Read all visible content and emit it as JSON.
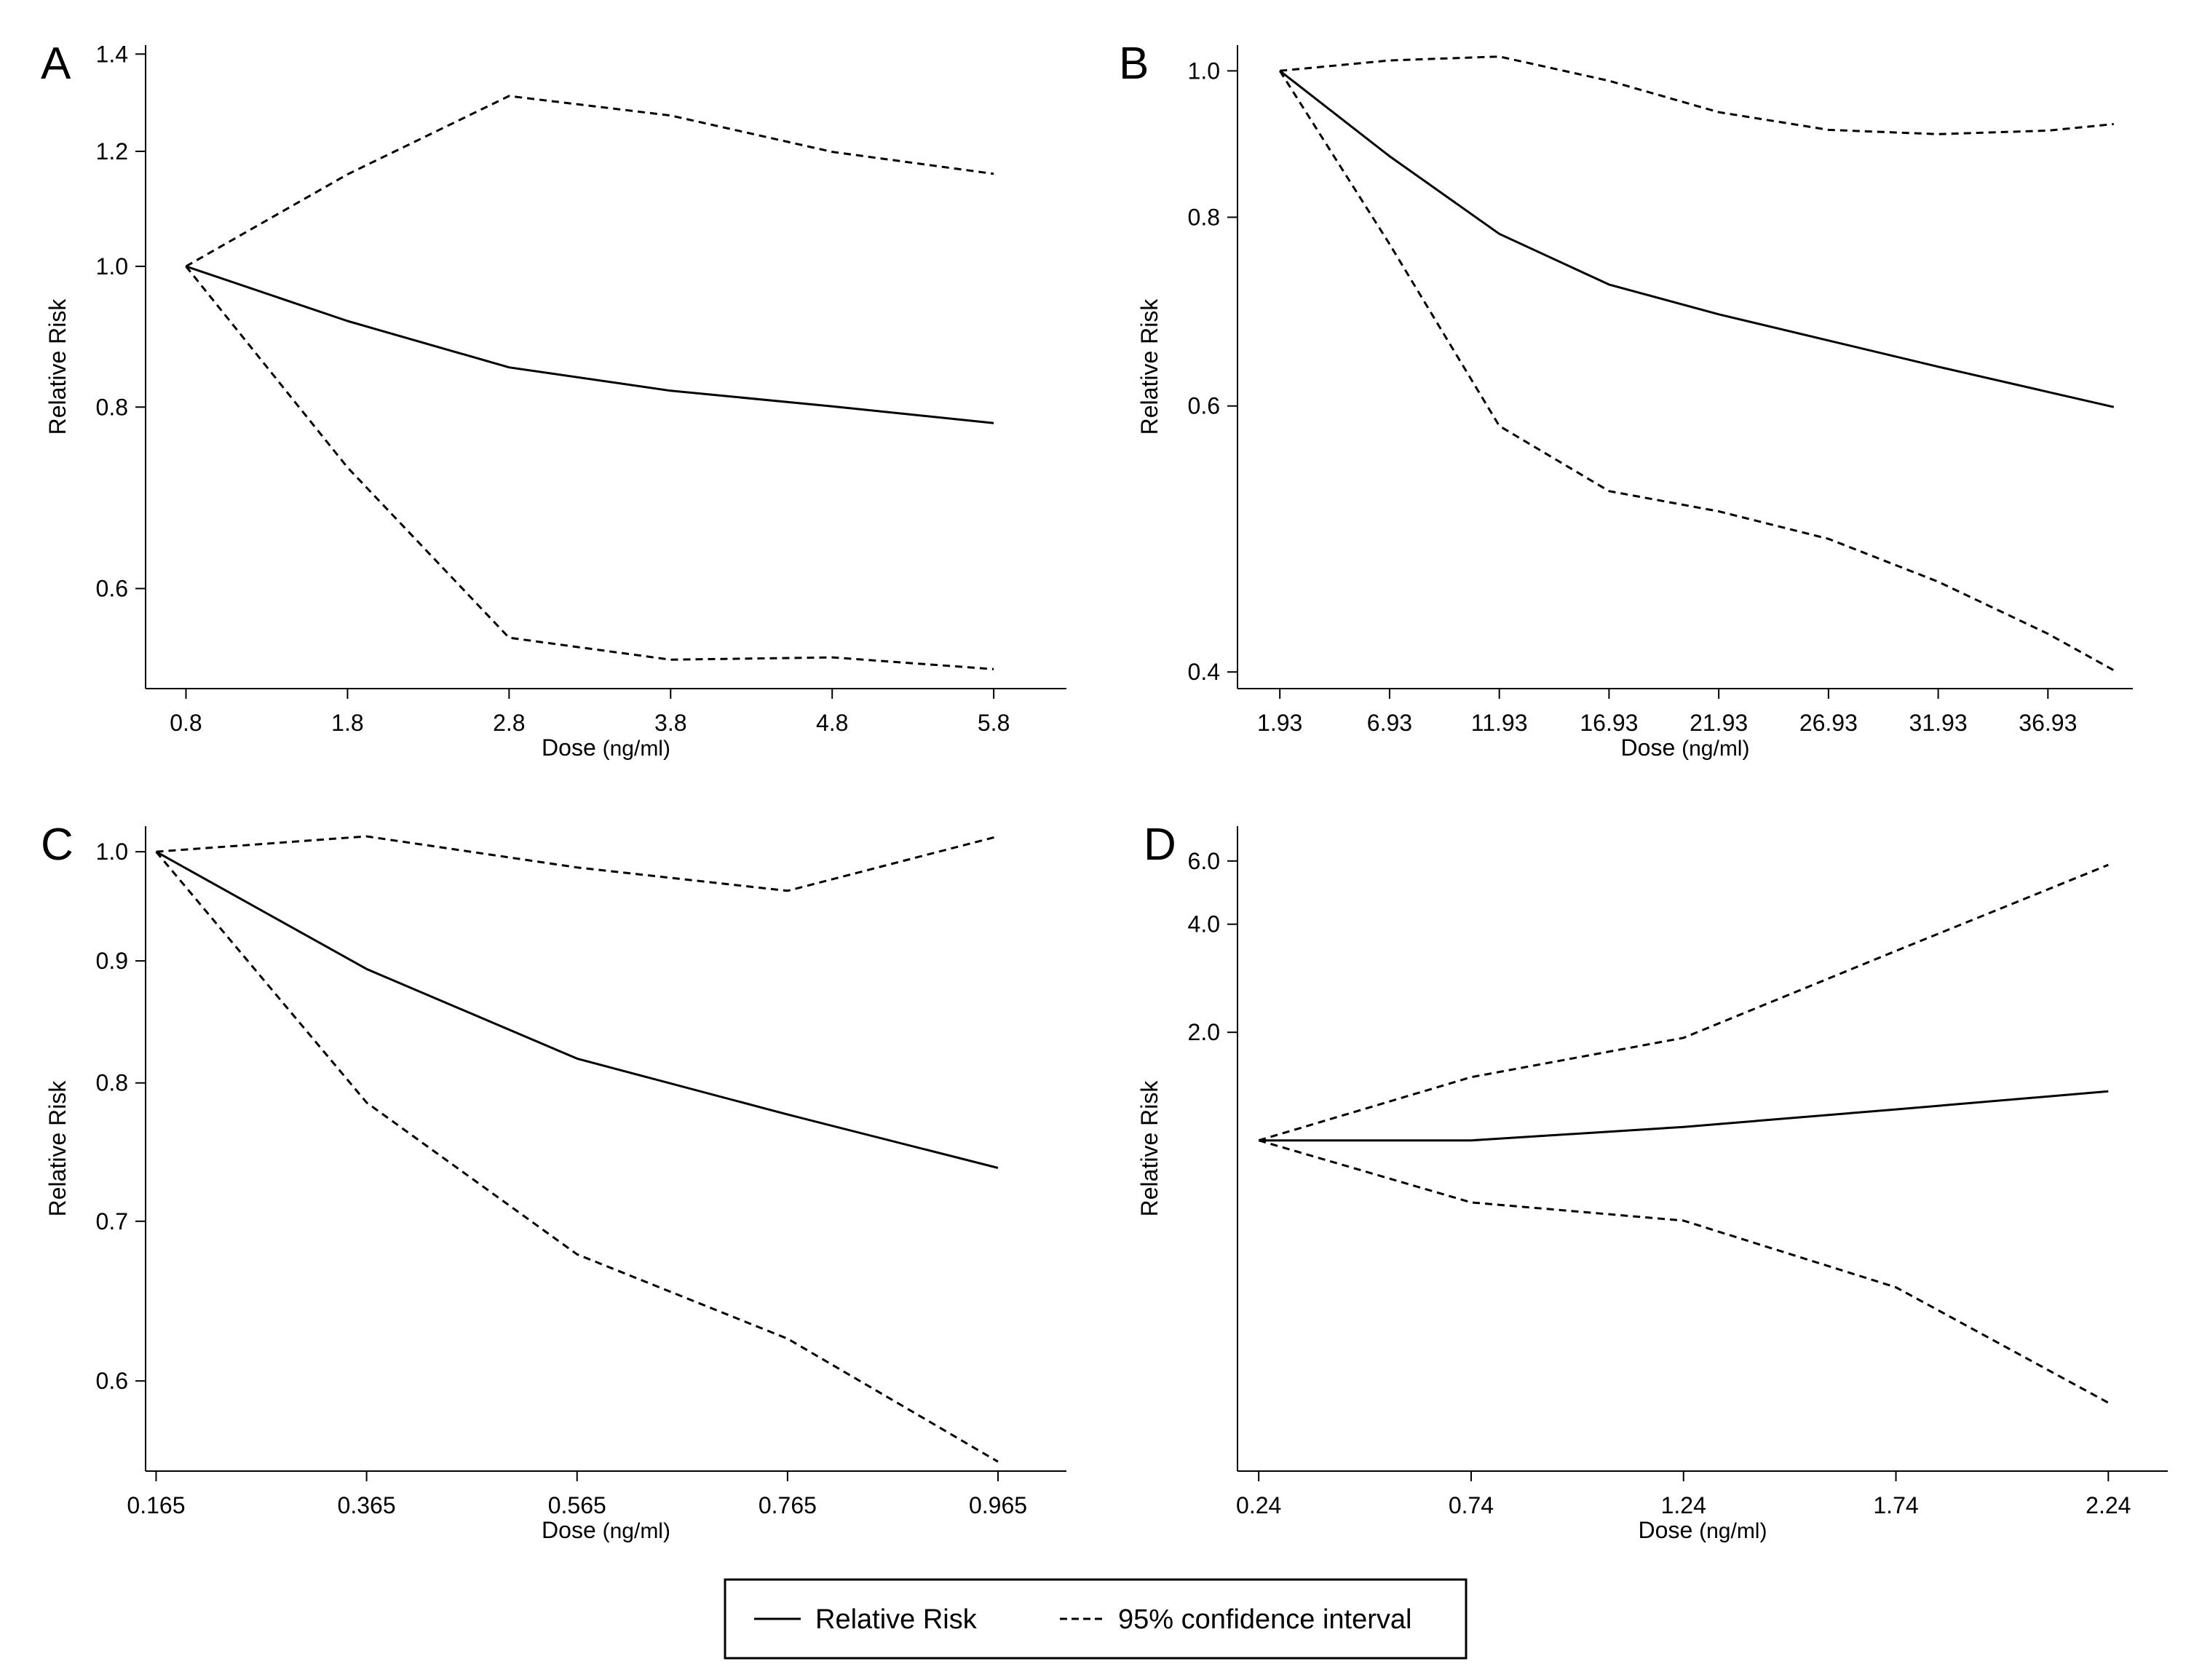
{
  "legend": {
    "solid_label": "Relative Risk",
    "dashed_label": "95% confidence interval"
  },
  "colors": {
    "line": "#000000",
    "background": "#ffffff"
  },
  "chart_data": [
    {
      "panel": "A",
      "type": "line",
      "xlabel": "Dose",
      "xunit": "(ng/ml)",
      "ylabel": "Relative Risk",
      "yscale": "log",
      "ylim": [
        0.512,
        1.42
      ],
      "xlim": [
        0.55,
        6.25
      ],
      "x_ticks": [
        0.8,
        1.8,
        2.8,
        3.8,
        4.8,
        5.8
      ],
      "x_tick_labels": [
        "0.8",
        "1.8",
        "2.8",
        "3.8",
        "4.8",
        "5.8"
      ],
      "y_ticks": [
        0.6,
        0.8,
        1.0,
        1.2,
        1.4
      ],
      "y_tick_labels": [
        "0.6",
        "0.8",
        "1.0",
        "1.2",
        "1.4"
      ],
      "series": [
        {
          "name": "Relative Risk",
          "style": "solid",
          "x": [
            0.8,
            1.8,
            2.8,
            3.8,
            4.8,
            5.8
          ],
          "y": [
            1.0,
            0.917,
            0.852,
            0.821,
            0.801,
            0.78
          ]
        },
        {
          "name": "95% confidence interval",
          "style": "dashed",
          "x": [
            0.8,
            1.8,
            2.8,
            3.8,
            4.8,
            5.8
          ],
          "y": [
            1.0,
            1.157,
            1.31,
            1.27,
            1.199,
            1.158
          ]
        },
        {
          "name": "95% confidence interval",
          "style": "dashed",
          "x": [
            0.8,
            1.8,
            2.8,
            3.8,
            4.8,
            5.8
          ],
          "y": [
            1.0,
            0.727,
            0.555,
            0.536,
            0.538,
            0.528
          ]
        }
      ]
    },
    {
      "panel": "B",
      "type": "line",
      "xlabel": "Dose",
      "xunit": "(ng/ml)",
      "ylabel": "Relative Risk",
      "yscale": "log",
      "ylim": [
        0.39,
        1.04
      ],
      "xlim": [
        0.0,
        40.8
      ],
      "x_ticks": [
        1.93,
        6.93,
        11.93,
        16.93,
        21.93,
        26.93,
        31.93,
        36.93
      ],
      "x_tick_labels": [
        "1.93",
        "6.93",
        "11.93",
        "16.93",
        "21.93",
        "26.93",
        "31.93",
        "36.93"
      ],
      "y_ticks": [
        0.4,
        0.6,
        0.8,
        1.0
      ],
      "y_tick_labels": [
        "0.4",
        "0.6",
        "0.8",
        "1.0"
      ],
      "series": [
        {
          "name": "Relative Risk",
          "style": "solid",
          "x": [
            1.93,
            6.93,
            11.93,
            16.93,
            21.93,
            26.93,
            31.93,
            36.93,
            39.93
          ],
          "y": [
            1.0,
            0.878,
            0.78,
            0.722,
            0.69,
            0.663,
            0.637,
            0.613,
            0.599
          ]
        },
        {
          "name": "95% confidence interval",
          "style": "dashed",
          "x": [
            1.93,
            6.93,
            11.93,
            16.93,
            21.93,
            26.93,
            31.93,
            36.93,
            39.93
          ],
          "y": [
            1.0,
            1.016,
            1.022,
            0.985,
            0.939,
            0.914,
            0.908,
            0.913,
            0.922
          ]
        },
        {
          "name": "95% confidence interval",
          "style": "dashed",
          "x": [
            1.93,
            6.93,
            11.93,
            16.93,
            21.93,
            26.93,
            31.93,
            36.93,
            39.93
          ],
          "y": [
            1.0,
            0.768,
            0.582,
            0.527,
            0.511,
            0.49,
            0.459,
            0.424,
            0.401
          ]
        }
      ]
    },
    {
      "panel": "C",
      "type": "line",
      "xlabel": "Dose",
      "xunit": "(ng/ml)",
      "ylabel": "Relative Risk",
      "yscale": "log",
      "ylim": [
        0.55,
        1.025
      ],
      "xlim": [
        0.155,
        1.03
      ],
      "x_ticks": [
        0.165,
        0.365,
        0.565,
        0.765,
        0.965
      ],
      "x_tick_labels": [
        "0.165",
        "0.365",
        "0.565",
        "0.765",
        "0.965"
      ],
      "y_ticks": [
        0.6,
        0.7,
        0.8,
        0.9,
        1.0
      ],
      "y_tick_labels": [
        "0.6",
        "0.7",
        "0.8",
        "0.9",
        "1.0"
      ],
      "series": [
        {
          "name": "Relative Risk",
          "style": "solid",
          "x": [
            0.165,
            0.365,
            0.565,
            0.765,
            0.965
          ],
          "y": [
            1.0,
            0.893,
            0.819,
            0.776,
            0.737
          ]
        },
        {
          "name": "95% confidence interval",
          "style": "dashed",
          "x": [
            0.165,
            0.365,
            0.565,
            0.765,
            0.965
          ],
          "y": [
            1.0,
            1.015,
            0.985,
            0.963,
            1.015
          ]
        },
        {
          "name": "95% confidence interval",
          "style": "dashed",
          "x": [
            0.165,
            0.365,
            0.565,
            0.765,
            0.965
          ],
          "y": [
            1.0,
            0.785,
            0.678,
            0.625,
            0.555
          ]
        }
      ]
    },
    {
      "panel": "D",
      "type": "line",
      "xlabel": "Dose",
      "xunit": "(ng/ml)",
      "ylabel": "Relative Risk",
      "yscale": "log",
      "ylim": [
        0.12,
        7.5
      ],
      "xlim": [
        0.19,
        2.38
      ],
      "x_ticks": [
        0.24,
        0.74,
        1.24,
        1.74,
        2.24
      ],
      "x_tick_labels": [
        "0.24",
        "0.74",
        "1.24",
        "1.74",
        "2.24"
      ],
      "y_ticks": [
        2.0,
        4.0,
        6.0
      ],
      "y_tick_labels": [
        "2.0",
        "4.0",
        "6.0"
      ],
      "series": [
        {
          "name": "Relative Risk",
          "style": "solid",
          "x": [
            0.24,
            0.74,
            1.24,
            1.74,
            2.24
          ],
          "y": [
            1.0,
            1.0,
            1.09,
            1.22,
            1.37
          ]
        },
        {
          "name": "95% confidence interval",
          "style": "dashed",
          "x": [
            0.24,
            0.74,
            1.24,
            1.74,
            2.24
          ],
          "y": [
            1.0,
            1.5,
            1.93,
            3.37,
            5.85
          ]
        },
        {
          "name": "95% confidence interval",
          "style": "dashed",
          "x": [
            0.24,
            0.74,
            1.24,
            1.74,
            2.24
          ],
          "y": [
            1.0,
            0.672,
            0.598,
            0.39,
            0.186
          ]
        }
      ]
    }
  ]
}
